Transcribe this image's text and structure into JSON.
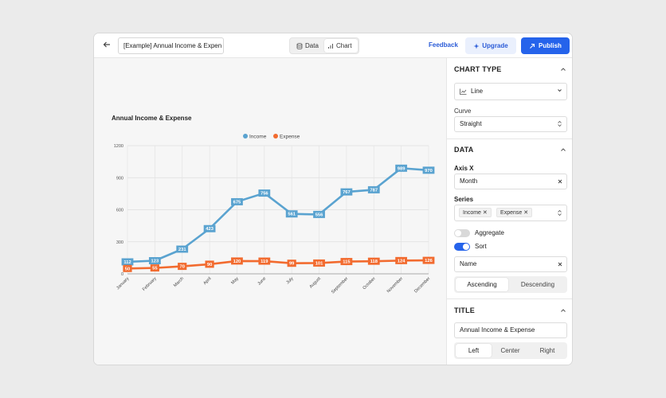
{
  "header": {
    "back_icon": "arrow-left-icon",
    "document_title": "[Example] Annual Income & Expen",
    "view_tabs": [
      {
        "label": "Data",
        "icon": "database-icon"
      },
      {
        "label": "Chart",
        "icon": "bar-chart-icon"
      }
    ],
    "active_view": "Chart",
    "feedback_label": "Feedback",
    "upgrade_label": "Upgrade",
    "publish_label": "Publish"
  },
  "chart_data": {
    "type": "line",
    "title": "Annual Income & Expense",
    "categories": [
      "January",
      "February",
      "March",
      "April",
      "May",
      "June",
      "July",
      "August",
      "September",
      "October",
      "November",
      "December"
    ],
    "series": [
      {
        "name": "Income",
        "color": "#5aa3d0",
        "values": [
          112,
          123,
          231,
          423,
          675,
          756,
          561,
          556,
          767,
          787,
          989,
          970
        ]
      },
      {
        "name": "Expense",
        "color": "#f26b2f",
        "values": [
          50,
          55,
          70,
          90,
          120,
          119,
          99,
          101,
          115,
          118,
          124,
          126
        ]
      }
    ],
    "ylim": [
      0,
      1200
    ],
    "yticks": [
      0,
      300,
      600,
      900,
      1200
    ],
    "grid": true,
    "legend": "top-center"
  },
  "panel": {
    "chart_type": {
      "section_title": "CHART TYPE",
      "type_value": "Line",
      "curve_label": "Curve",
      "curve_value": "Straight"
    },
    "data": {
      "section_title": "DATA",
      "axis_x_label": "Axis X",
      "axis_x_value": "Month",
      "series_label": "Series",
      "series_tags": [
        "Income",
        "Expense"
      ],
      "aggregate_label": "Aggregate",
      "aggregate_on": false,
      "sort_label": "Sort",
      "sort_on": true,
      "sort_field": "Name",
      "sort_options": [
        "Ascending",
        "Descending"
      ],
      "sort_selected": "Ascending"
    },
    "title": {
      "section_title": "TITLE",
      "title_value": "Annual Income & Expense",
      "align_options": [
        "Left",
        "Center",
        "Right"
      ],
      "align_selected": "Left"
    }
  },
  "colors": {
    "accent": "#2563eb",
    "toggle_on": "#2563eb",
    "toggle_off": "#d9d9d9"
  }
}
